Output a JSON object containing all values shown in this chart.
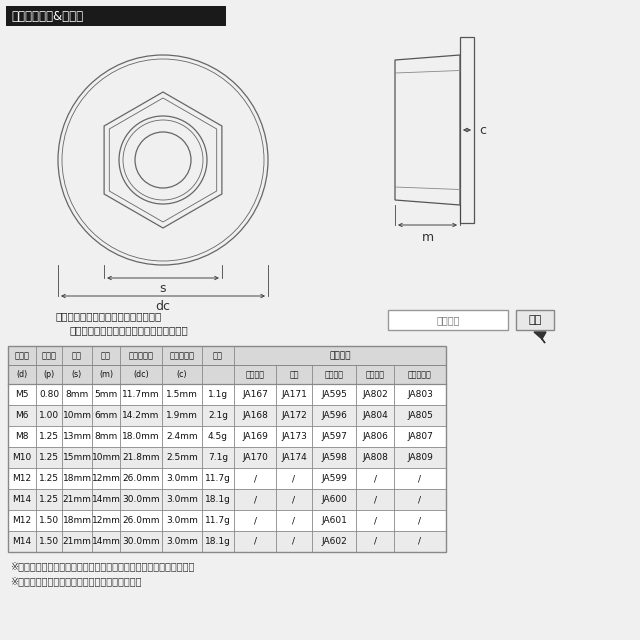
{
  "title": "ラインアップ&サイズ",
  "bg_color": "#f0f0f0",
  "title_bg": "#1a1a1a",
  "title_fg": "#ffffff",
  "search_text1": "ストア内検索に商品番号を入力すると",
  "search_text2": "お探しの商品に素早くアクセスできます。",
  "label_shohinkno": "商品番号",
  "label_kensaku": "検索",
  "col_headers1": [
    "呼び径",
    "ピッチ",
    "平径",
    "高さ",
    "フランジ径",
    "フランジ厕",
    "重量",
    "当店品番"
  ],
  "col_headers2": [
    "(d)",
    "(p)",
    "(s)",
    "(m)",
    "(dc)",
    "(c)",
    "",
    ""
  ],
  "col_headers3": [
    "ブラック",
    "虹色",
    "シルバー",
    "ゴールド",
    "焼きチタン"
  ],
  "rows": [
    [
      "M5",
      "0.80",
      "8mm",
      "5mm",
      "11.7mm",
      "1.5mm",
      "1.1g",
      "JA167",
      "JA171",
      "JA595",
      "JA802",
      "JA803"
    ],
    [
      "M6",
      "1.00",
      "10mm",
      "6mm",
      "14.2mm",
      "1.9mm",
      "2.1g",
      "JA168",
      "JA172",
      "JA596",
      "JA804",
      "JA805"
    ],
    [
      "M8",
      "1.25",
      "13mm",
      "8mm",
      "18.0mm",
      "2.4mm",
      "4.5g",
      "JA169",
      "JA173",
      "JA597",
      "JA806",
      "JA807"
    ],
    [
      "M10",
      "1.25",
      "15mm",
      "10mm",
      "21.8mm",
      "2.5mm",
      "7.1g",
      "JA170",
      "JA174",
      "JA598",
      "JA808",
      "JA809"
    ],
    [
      "M12",
      "1.25",
      "18mm",
      "12mm",
      "26.0mm",
      "3.0mm",
      "11.7g",
      "/",
      "/",
      "JA599",
      "/",
      "/"
    ],
    [
      "M14",
      "1.25",
      "21mm",
      "14mm",
      "30.0mm",
      "3.0mm",
      "18.1g",
      "/",
      "/",
      "JA600",
      "/",
      "/"
    ],
    [
      "M12",
      "1.50",
      "18mm",
      "12mm",
      "26.0mm",
      "3.0mm",
      "11.7g",
      "/",
      "/",
      "JA601",
      "/",
      "/"
    ],
    [
      "M14",
      "1.50",
      "21mm",
      "14mm",
      "30.0mm",
      "3.0mm",
      "18.1g",
      "/",
      "/",
      "JA602",
      "/",
      "/"
    ]
  ],
  "note1": "※記載のサイズ・重量は平均値です。個体により誤差がございます。",
  "note2": "※個体差により着色が異なる場合がございます。"
}
